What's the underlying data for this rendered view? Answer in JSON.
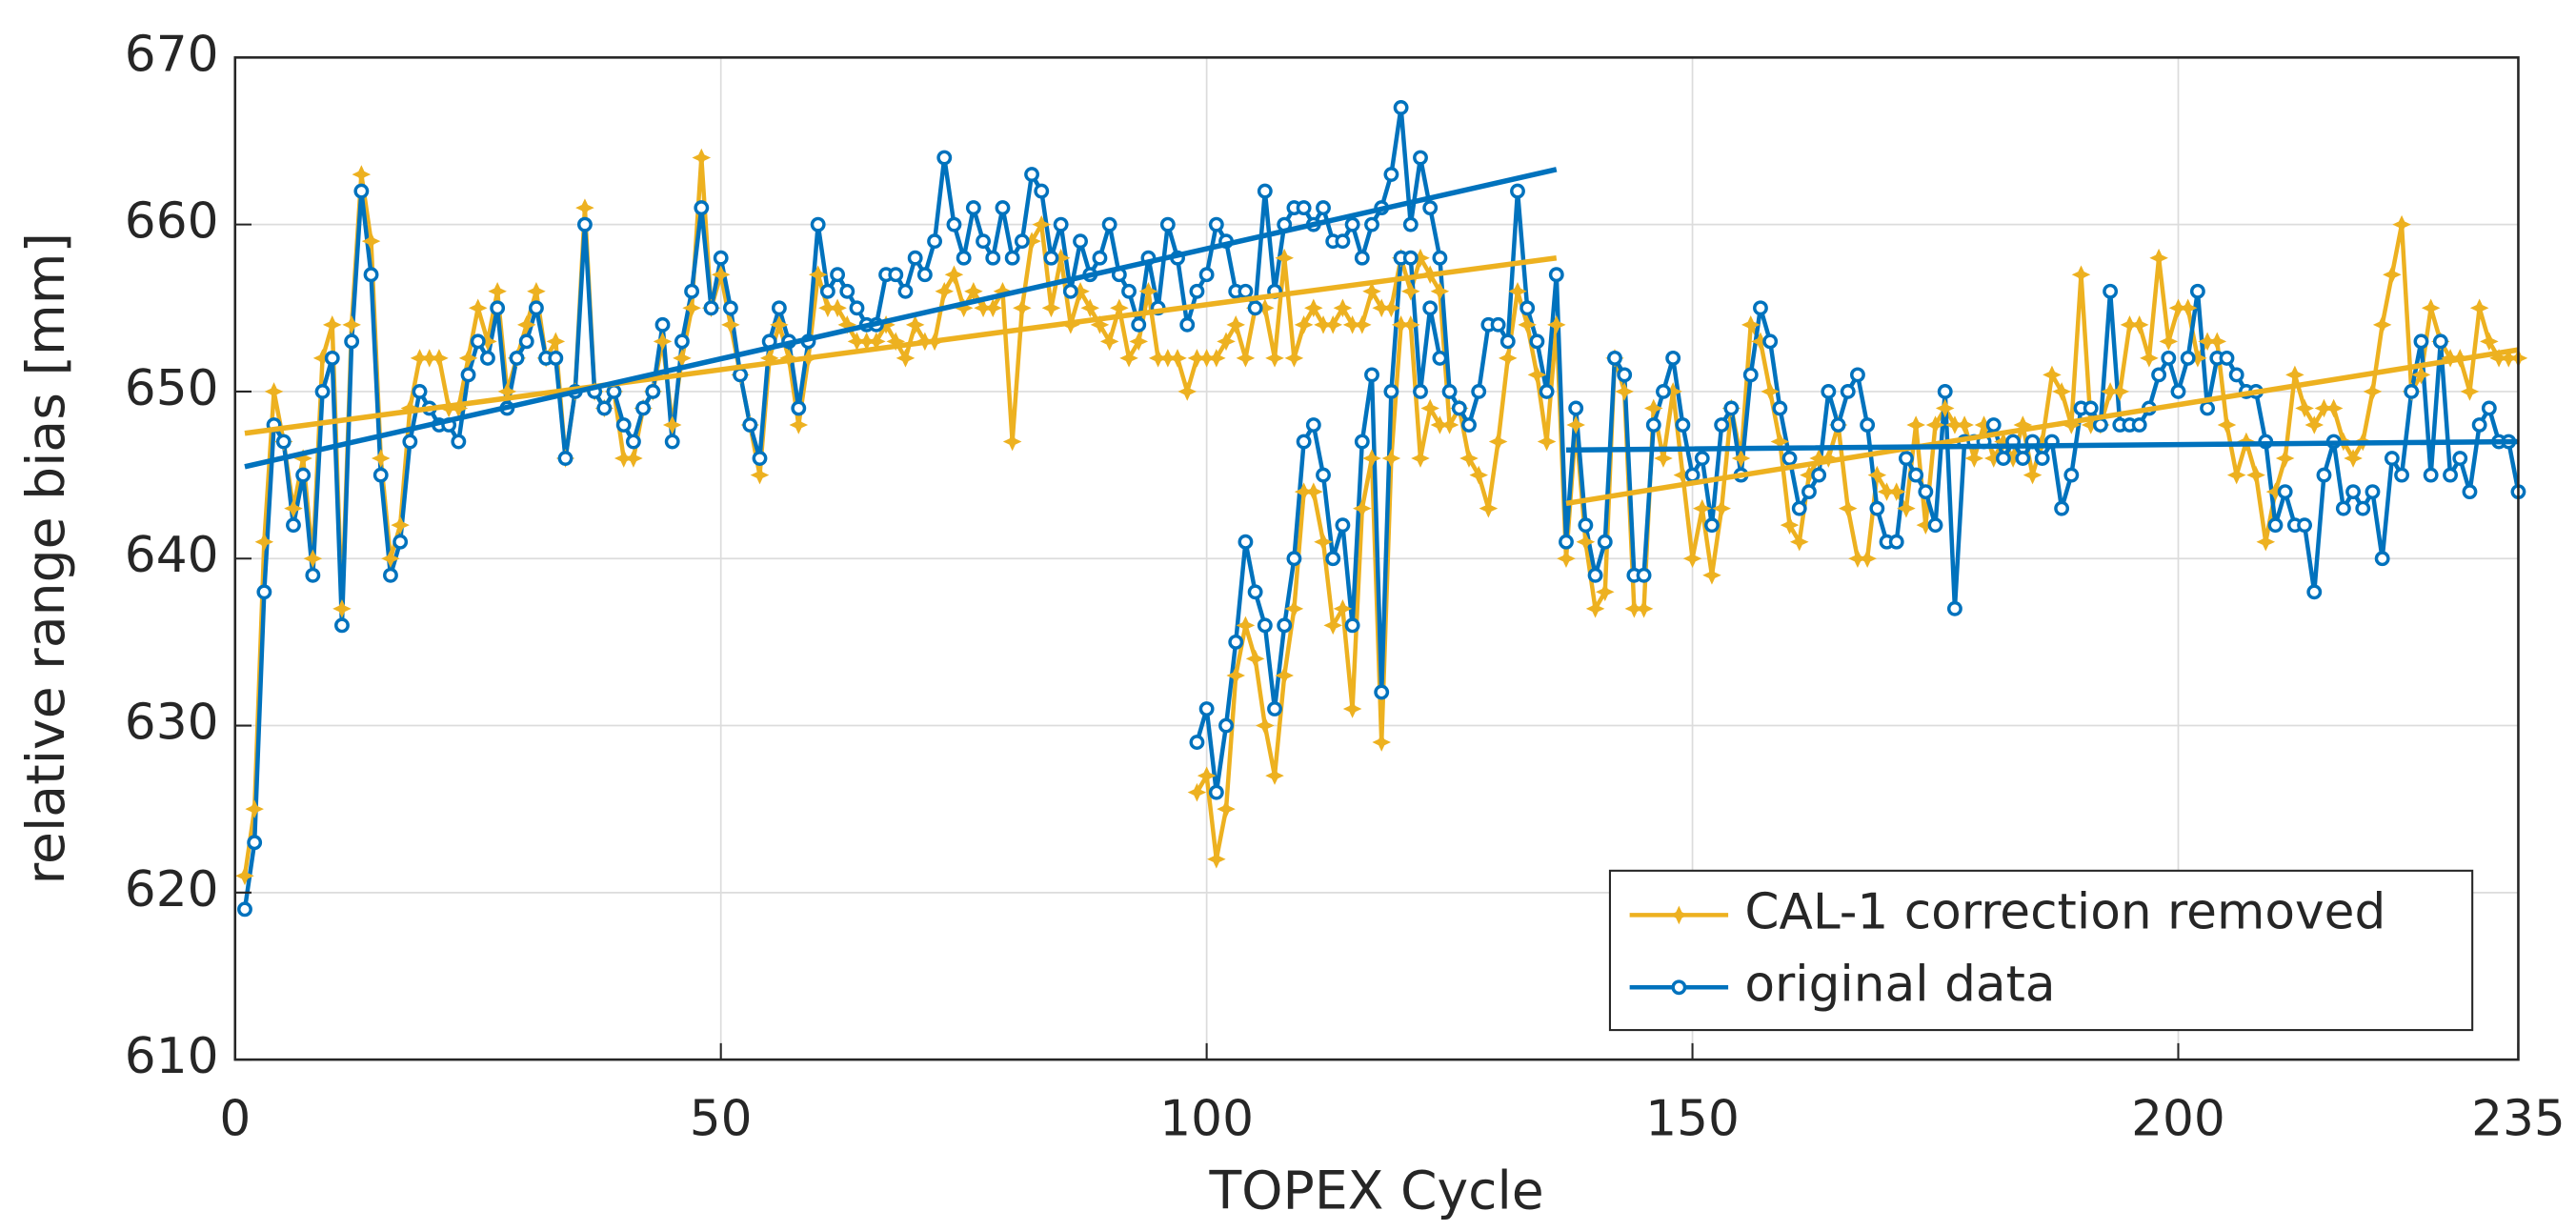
{
  "chart_data": {
    "type": "line",
    "xlabel": "TOPEX Cycle",
    "ylabel": "relative range bias [mm]",
    "xlim": [
      0,
      235
    ],
    "ylim": [
      610,
      670
    ],
    "xticks": [
      0,
      50,
      100,
      150,
      200,
      235
    ],
    "yticks": [
      610,
      620,
      630,
      640,
      650,
      660,
      670
    ],
    "grid": true,
    "legend": "lower right",
    "x": [
      1,
      2,
      3,
      4,
      5,
      6,
      7,
      8,
      9,
      10,
      11,
      12,
      13,
      14,
      15,
      16,
      17,
      18,
      19,
      20,
      21,
      22,
      23,
      24,
      25,
      26,
      27,
      28,
      29,
      30,
      31,
      32,
      33,
      34,
      35,
      36,
      37,
      38,
      39,
      40,
      41,
      42,
      43,
      44,
      45,
      46,
      47,
      48,
      49,
      50,
      51,
      52,
      53,
      54,
      55,
      56,
      57,
      58,
      59,
      60,
      61,
      62,
      63,
      64,
      65,
      66,
      67,
      68,
      69,
      70,
      71,
      72,
      73,
      74,
      75,
      76,
      77,
      78,
      79,
      80,
      81,
      82,
      83,
      84,
      85,
      86,
      87,
      88,
      89,
      90,
      91,
      92,
      93,
      94,
      95,
      96,
      97,
      98,
      99,
      100,
      101,
      102,
      103,
      104,
      105,
      106,
      107,
      108,
      109,
      110,
      111,
      112,
      113,
      114,
      115,
      116,
      117,
      118,
      119,
      120,
      121,
      122,
      123,
      124,
      125,
      126,
      127,
      128,
      129,
      130,
      131,
      132,
      133,
      134,
      135,
      136,
      137,
      138,
      139,
      140,
      141,
      142,
      143,
      144,
      145,
      146,
      147,
      148,
      149,
      150,
      151,
      152,
      153,
      154,
      155,
      156,
      157,
      158,
      159,
      160,
      161,
      162,
      163,
      164,
      165,
      166,
      167,
      168,
      169,
      170,
      171,
      172,
      173,
      174,
      175,
      176,
      177,
      178,
      179,
      180,
      181,
      182,
      183,
      184,
      185,
      186,
      187,
      188,
      189,
      190,
      191,
      192,
      193,
      194,
      195,
      196,
      197,
      198,
      199,
      200,
      201,
      202,
      203,
      204,
      205,
      206,
      207,
      208,
      209,
      210,
      211,
      212,
      213,
      214,
      215,
      216,
      217,
      218,
      219,
      220,
      221,
      222,
      223,
      224,
      225,
      226,
      227,
      228,
      229,
      230,
      231,
      232,
      233,
      234,
      235,
      null,
      99,
      100,
      101,
      102,
      103,
      104,
      105,
      106,
      107,
      108,
      109,
      110,
      111,
      112,
      113,
      114,
      115,
      116,
      117,
      118,
      119,
      120,
      121,
      122,
      123,
      124
    ],
    "series": [
      {
        "name": "CAL-1 correction removed",
        "color": "#edb120",
        "marker": "star",
        "values": [
          621,
          625,
          641,
          650,
          647,
          643,
          646,
          640,
          652,
          654,
          637,
          654,
          663,
          659,
          646,
          640,
          642,
          649,
          652,
          652,
          652,
          649,
          649,
          652,
          655,
          653,
          656,
          650,
          652,
          654,
          656,
          652,
          653,
          646,
          650,
          661,
          650,
          649,
          650,
          646,
          646,
          649,
          650,
          653,
          648,
          652,
          655,
          664,
          655,
          657,
          654,
          651,
          648,
          645,
          652,
          654,
          652,
          648,
          652,
          657,
          655,
          655,
          654,
          653,
          653,
          653,
          654,
          653,
          652,
          654,
          653,
          653,
          656,
          657,
          655,
          656,
          655,
          655,
          656,
          647,
          655,
          659,
          660,
          655,
          658,
          654,
          656,
          655,
          654,
          653,
          655,
          652,
          653,
          656,
          652,
          652,
          652,
          650,
          652,
          652,
          652,
          653,
          654,
          652,
          655,
          655,
          652,
          658,
          652,
          654,
          655,
          654,
          654,
          655,
          654,
          654,
          656,
          655,
          655,
          658,
          656,
          658,
          657,
          656,
          648,
          649,
          646,
          645,
          643,
          647,
          652,
          656,
          654,
          651,
          647,
          654,
          640,
          648,
          641,
          637,
          638,
          652,
          650,
          637,
          637,
          649,
          646,
          650,
          645,
          640,
          643,
          639,
          643,
          649,
          646,
          654,
          653,
          650,
          647,
          642,
          641,
          645,
          646,
          646,
          648,
          643,
          640,
          640,
          645,
          644,
          644,
          643,
          648,
          642,
          648,
          649,
          648,
          648,
          646,
          648,
          646,
          647,
          646,
          648,
          645,
          647,
          651,
          650,
          648,
          657,
          648,
          648,
          650,
          650,
          654,
          654,
          652,
          658,
          653,
          655,
          655,
          652,
          653,
          653,
          648,
          645,
          647,
          645,
          641,
          644,
          646,
          651,
          649,
          648,
          649,
          649,
          647,
          646,
          647,
          650,
          654,
          657,
          660,
          650,
          651,
          655,
          653,
          652,
          652,
          650,
          655,
          653,
          652,
          652,
          652,
          null,
          626,
          627,
          622,
          625,
          633,
          636,
          634,
          630,
          627,
          633,
          637,
          644,
          644,
          641,
          636,
          637,
          631,
          643,
          646,
          629,
          646,
          654,
          654,
          646,
          649,
          648
        ]
      },
      {
        "name": "original data",
        "color": "#0072bd",
        "marker": "circle",
        "values": [
          619,
          623,
          638,
          648,
          647,
          642,
          645,
          639,
          650,
          652,
          636,
          653,
          662,
          657,
          645,
          639,
          641,
          647,
          650,
          649,
          648,
          648,
          647,
          651,
          653,
          652,
          655,
          649,
          652,
          653,
          655,
          652,
          652,
          646,
          650,
          660,
          650,
          649,
          650,
          648,
          647,
          649,
          650,
          654,
          647,
          653,
          656,
          661,
          655,
          658,
          655,
          651,
          648,
          646,
          653,
          655,
          653,
          649,
          653,
          660,
          656,
          657,
          656,
          655,
          654,
          654,
          657,
          657,
          656,
          658,
          657,
          659,
          664,
          660,
          658,
          661,
          659,
          658,
          661,
          658,
          659,
          663,
          662,
          658,
          660,
          656,
          659,
          657,
          658,
          660,
          657,
          656,
          654,
          658,
          655,
          660,
          658,
          654,
          656,
          657,
          660,
          659,
          656,
          656,
          655,
          662,
          656,
          660,
          661,
          661,
          660,
          661,
          659,
          659,
          660,
          658,
          660,
          661,
          663,
          667,
          660,
          664,
          661,
          658,
          650,
          649,
          648,
          650,
          654,
          654,
          653,
          662,
          655,
          653,
          650,
          657,
          641,
          649,
          642,
          639,
          641,
          652,
          651,
          639,
          639,
          648,
          650,
          652,
          648,
          645,
          646,
          642,
          648,
          649,
          645,
          651,
          655,
          653,
          649,
          646,
          643,
          644,
          645,
          650,
          648,
          650,
          651,
          648,
          643,
          641,
          641,
          646,
          645,
          644,
          642,
          650,
          637,
          647,
          647,
          647,
          648,
          646,
          647,
          646,
          647,
          646,
          647,
          643,
          645,
          649,
          649,
          648,
          656,
          648,
          648,
          648,
          649,
          651,
          652,
          650,
          652,
          656,
          649,
          652,
          652,
          651,
          650,
          650,
          647,
          642,
          644,
          642,
          642,
          638,
          645,
          647,
          643,
          644,
          643,
          644,
          640,
          646,
          645,
          650,
          653,
          645,
          653,
          645,
          646,
          644,
          648,
          649,
          647,
          647,
          644,
          null,
          629,
          631,
          626,
          630,
          635,
          641,
          638,
          636,
          631,
          636,
          640,
          647,
          648,
          645,
          640,
          642,
          636,
          647,
          651,
          632,
          650,
          658,
          658,
          650,
          655,
          652
        ]
      }
    ],
    "trend_lines": [
      {
        "color": "#edb120",
        "x": [
          1,
          136,
          null,
          137,
          235
        ],
        "values": [
          647.5,
          658,
          null,
          643.3,
          652.5
        ]
      },
      {
        "color": "#0072bd",
        "x": [
          1,
          136,
          null,
          137,
          235
        ],
        "values": [
          645.5,
          663.3,
          null,
          646.5,
          647
        ]
      }
    ]
  }
}
